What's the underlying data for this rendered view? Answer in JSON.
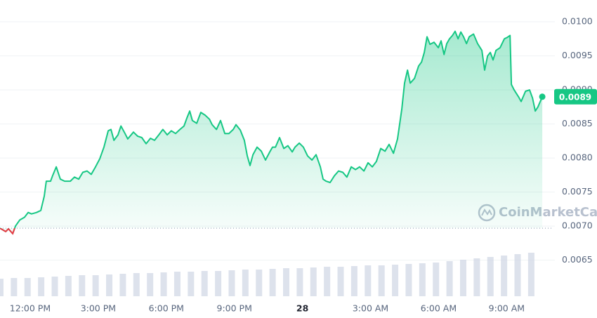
{
  "chart_data": {
    "type": "line",
    "xlim": [
      10.67,
      34.97
    ],
    "ylim": [
      0.00594,
      0.01032
    ],
    "xticks": [
      {
        "value": 12,
        "label": "12:00 PM"
      },
      {
        "value": 15,
        "label": "3:00 PM"
      },
      {
        "value": 18,
        "label": "6:00 PM"
      },
      {
        "value": 21,
        "label": "9:00 PM"
      },
      {
        "value": 24,
        "label": "28"
      },
      {
        "value": 27,
        "label": "3:00 AM"
      },
      {
        "value": 30,
        "label": "6:00 AM"
      },
      {
        "value": 33,
        "label": "9:00 AM"
      }
    ],
    "yticks": [
      {
        "value": 0.0065,
        "label": "0.0065"
      },
      {
        "value": 0.007,
        "label": "0.0070"
      },
      {
        "value": 0.0075,
        "label": "0.0075"
      },
      {
        "value": 0.008,
        "label": "0.0080"
      },
      {
        "value": 0.0085,
        "label": "0.0085"
      },
      {
        "value": 0.009,
        "label": "0.0090"
      },
      {
        "value": 0.0095,
        "label": "0.0095"
      },
      {
        "value": 0.01,
        "label": "0.0100"
      }
    ],
    "grid": true,
    "open_price": 0.00697,
    "below_color": "#ea3943",
    "current_price": {
      "value": 0.0089,
      "label": "0.0089"
    },
    "watermark": "CoinMarketCap",
    "series": [
      {
        "color": "#16c784",
        "x": [
          10.67,
          10.92,
          11.04,
          11.23,
          11.35,
          11.54,
          11.75,
          11.91,
          12.06,
          12.28,
          12.47,
          12.62,
          12.71,
          12.9,
          12.99,
          13.15,
          13.33,
          13.52,
          13.77,
          13.95,
          14.14,
          14.32,
          14.51,
          14.69,
          14.88,
          15.07,
          15.25,
          15.44,
          15.56,
          15.69,
          15.87,
          16,
          16.18,
          16.3,
          16.55,
          16.74,
          16.92,
          17.11,
          17.3,
          17.48,
          17.67,
          17.85,
          18.04,
          18.22,
          18.41,
          18.6,
          18.78,
          18.91,
          19.03,
          19.15,
          19.34,
          19.52,
          19.71,
          19.9,
          20.02,
          20.21,
          20.39,
          20.58,
          20.76,
          20.95,
          21.07,
          21.26,
          21.44,
          21.57,
          21.69,
          21.82,
          22,
          22.19,
          22.37,
          22.56,
          22.68,
          22.81,
          22.99,
          23.18,
          23.36,
          23.55,
          23.67,
          23.86,
          24.04,
          24.23,
          24.42,
          24.6,
          24.79,
          24.91,
          25.04,
          25.22,
          25.41,
          25.59,
          25.78,
          25.96,
          26.15,
          26.34,
          26.52,
          26.71,
          26.89,
          27.08,
          27.26,
          27.45,
          27.64,
          27.82,
          28.01,
          28.19,
          28.38,
          28.5,
          28.63,
          28.75,
          28.94,
          29.12,
          29.25,
          29.37,
          29.49,
          29.62,
          29.8,
          29.99,
          30.11,
          30.24,
          30.36,
          30.48,
          30.61,
          30.73,
          30.86,
          30.98,
          31.1,
          31.23,
          31.35,
          31.54,
          31.72,
          31.91,
          32.03,
          32.16,
          32.28,
          32.4,
          32.53,
          32.71,
          32.9,
          33.02,
          33.15,
          33.21,
          33.33,
          33.52,
          33.64,
          33.83,
          34.01,
          34.14,
          34.26,
          34.38,
          34.57
        ],
        "values": [
          0.00697,
          0.00692,
          0.00696,
          0.00689,
          0.007,
          0.00709,
          0.00713,
          0.0072,
          0.00718,
          0.0072,
          0.00723,
          0.00744,
          0.00766,
          0.00766,
          0.00774,
          0.00787,
          0.00769,
          0.00766,
          0.00766,
          0.00772,
          0.00769,
          0.00779,
          0.00781,
          0.00776,
          0.00787,
          0.00799,
          0.00816,
          0.0084,
          0.00842,
          0.00826,
          0.00834,
          0.00847,
          0.00836,
          0.00828,
          0.00838,
          0.00832,
          0.0083,
          0.00821,
          0.00829,
          0.00826,
          0.00834,
          0.00842,
          0.00834,
          0.0084,
          0.00836,
          0.00842,
          0.00847,
          0.00859,
          0.00869,
          0.00855,
          0.00851,
          0.00867,
          0.00863,
          0.00857,
          0.00849,
          0.00842,
          0.00855,
          0.00836,
          0.00836,
          0.00842,
          0.00849,
          0.00841,
          0.00826,
          0.00803,
          0.00789,
          0.00805,
          0.00816,
          0.0081,
          0.00797,
          0.00809,
          0.00816,
          0.00816,
          0.0083,
          0.00814,
          0.00818,
          0.00809,
          0.00816,
          0.00822,
          0.00816,
          0.00803,
          0.00797,
          0.00805,
          0.00787,
          0.00769,
          0.00766,
          0.00764,
          0.00774,
          0.00781,
          0.00779,
          0.00772,
          0.00787,
          0.00783,
          0.00787,
          0.00781,
          0.00793,
          0.00787,
          0.00795,
          0.00814,
          0.0081,
          0.0082,
          0.00807,
          0.00828,
          0.00872,
          0.0091,
          0.00929,
          0.0091,
          0.00917,
          0.00935,
          0.00941,
          0.00955,
          0.00978,
          0.00967,
          0.0097,
          0.00962,
          0.00972,
          0.00952,
          0.00968,
          0.00975,
          0.0098,
          0.00986,
          0.00975,
          0.00985,
          0.00978,
          0.00968,
          0.00978,
          0.00982,
          0.00968,
          0.00958,
          0.00929,
          0.0095,
          0.00955,
          0.00944,
          0.00958,
          0.00962,
          0.00975,
          0.00977,
          0.0098,
          0.00908,
          0.009,
          0.0089,
          0.00883,
          0.00898,
          0.009,
          0.00888,
          0.00869,
          0.00875,
          0.0089
        ]
      }
    ],
    "volume_lim": [
      0,
      100
    ],
    "volume_color": "#cfd6e4",
    "volume_x": [
      10.7,
      11.3,
      11.9,
      12.5,
      13.1,
      13.7,
      14.3,
      14.9,
      15.5,
      16.1,
      16.7,
      17.3,
      17.9,
      18.5,
      19.1,
      19.7,
      20.3,
      20.9,
      21.5,
      22.1,
      22.7,
      23.3,
      23.9,
      24.5,
      25.1,
      25.7,
      26.3,
      26.9,
      27.5,
      28.1,
      28.7,
      29.3,
      29.9,
      30.5,
      31.1,
      31.7,
      32.3,
      32.9,
      33.5,
      34.1
    ],
    "volume": [
      25,
      26,
      26,
      27,
      28,
      29,
      30,
      30,
      31,
      32,
      33,
      33,
      34,
      35,
      35,
      36,
      36,
      37,
      38,
      38,
      39,
      40,
      40,
      41,
      42,
      42,
      43,
      44,
      44,
      45,
      46,
      47,
      48,
      50,
      52,
      54,
      56,
      58,
      60,
      62
    ]
  }
}
